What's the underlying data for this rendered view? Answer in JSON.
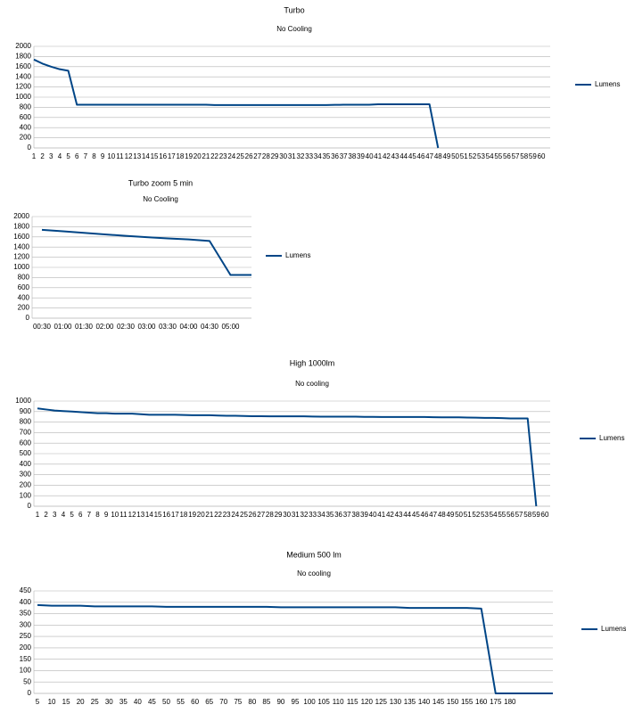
{
  "chart_data": [
    {
      "type": "line",
      "title": "Turbo",
      "subtitle": "No Cooling",
      "categories": [
        "1",
        "2",
        "3",
        "4",
        "5",
        "6",
        "7",
        "8",
        "9",
        "10",
        "11",
        "12",
        "13",
        "14",
        "15",
        "16",
        "17",
        "18",
        "19",
        "20",
        "21",
        "22",
        "23",
        "24",
        "25",
        "26",
        "27",
        "28",
        "29",
        "30",
        "31",
        "32",
        "33",
        "34",
        "35",
        "36",
        "37",
        "38",
        "39",
        "40",
        "41",
        "42",
        "43",
        "44",
        "45",
        "46",
        "47",
        "48",
        "49",
        "50",
        "51",
        "52",
        "53",
        "54",
        "55",
        "56",
        "57",
        "58",
        "59",
        "60"
      ],
      "series": [
        {
          "name": "Lumens",
          "color": "#004586",
          "values": [
            1740,
            1660,
            1600,
            1550,
            1520,
            850,
            850,
            850,
            850,
            850,
            850,
            850,
            850,
            850,
            850,
            850,
            850,
            850,
            850,
            850,
            850,
            845,
            845,
            845,
            845,
            845,
            845,
            845,
            845,
            845,
            845,
            845,
            845,
            845,
            845,
            848,
            850,
            850,
            850,
            850,
            860,
            860,
            860,
            860,
            860,
            860,
            860,
            0,
            null,
            null,
            null,
            null,
            null,
            null,
            null,
            null,
            null,
            null,
            null,
            null
          ]
        }
      ],
      "ylim": [
        0,
        2000
      ],
      "yticks": [
        0,
        200,
        400,
        600,
        800,
        1000,
        1200,
        1400,
        1600,
        1800,
        2000
      ],
      "grid": true
    },
    {
      "type": "line",
      "title": "Turbo zoom 5 min",
      "subtitle": "No Cooling",
      "categories": [
        "00:30",
        "01:00",
        "01:30",
        "02:00",
        "02:30",
        "03:00",
        "03:30",
        "04:00",
        "04:30",
        "05:00",
        null
      ],
      "series": [
        {
          "name": "Lumens",
          "color": "#004586",
          "values": [
            1740,
            1710,
            1680,
            1650,
            1620,
            1595,
            1570,
            1550,
            1520,
            850,
            850
          ]
        }
      ],
      "ylim": [
        0,
        2000
      ],
      "yticks": [
        0,
        200,
        400,
        600,
        800,
        1000,
        1200,
        1400,
        1600,
        1800,
        2000
      ],
      "grid": true
    },
    {
      "type": "line",
      "title": "High 1000lm",
      "subtitle": "No cooling",
      "categories": [
        "1",
        "2",
        "3",
        "4",
        "5",
        "6",
        "7",
        "8",
        "9",
        "10",
        "11",
        "12",
        "13",
        "14",
        "15",
        "16",
        "17",
        "18",
        "19",
        "20",
        "21",
        "22",
        "23",
        "24",
        "25",
        "26",
        "27",
        "28",
        "29",
        "30",
        "31",
        "32",
        "33",
        "34",
        "35",
        "36",
        "37",
        "38",
        "39",
        "40",
        "41",
        "42",
        "43",
        "44",
        "45",
        "46",
        "47",
        "48",
        "49",
        "50",
        "51",
        "52",
        "53",
        "54",
        "55",
        "56",
        "57",
        "58",
        "59",
        "60"
      ],
      "series": [
        {
          "name": "Lumens",
          "color": "#004586",
          "values": [
            930,
            920,
            910,
            905,
            900,
            895,
            890,
            885,
            885,
            880,
            880,
            880,
            875,
            870,
            870,
            870,
            870,
            868,
            865,
            865,
            865,
            862,
            860,
            860,
            858,
            856,
            856,
            855,
            855,
            855,
            855,
            855,
            853,
            852,
            852,
            852,
            852,
            852,
            850,
            850,
            848,
            848,
            848,
            848,
            848,
            848,
            846,
            845,
            845,
            845,
            843,
            842,
            840,
            840,
            838,
            835,
            835,
            835,
            0,
            null
          ]
        }
      ],
      "ylim": [
        0,
        1000
      ],
      "yticks": [
        0,
        100,
        200,
        300,
        400,
        500,
        600,
        700,
        800,
        900,
        1000
      ],
      "grid": true
    },
    {
      "type": "line",
      "title": "Medium 500 lm",
      "subtitle": "No cooling",
      "categories": [
        "5",
        "10",
        "15",
        "20",
        "25",
        "30",
        "35",
        "40",
        "45",
        "50",
        "55",
        "60",
        "65",
        "70",
        "75",
        "80",
        "85",
        "90",
        "95",
        "100",
        "105",
        "110",
        "115",
        "120",
        "125",
        "130",
        "135",
        "140",
        "145",
        "150",
        "155",
        "160",
        "175",
        "180",
        null,
        null,
        null
      ],
      "series": [
        {
          "name": "Lumens",
          "color": "#004586",
          "values": [
            388,
            385,
            385,
            385,
            382,
            382,
            382,
            382,
            382,
            380,
            380,
            380,
            380,
            380,
            380,
            380,
            380,
            378,
            378,
            378,
            378,
            378,
            378,
            378,
            378,
            378,
            375,
            375,
            375,
            375,
            375,
            372,
            0,
            0,
            0,
            0,
            0
          ]
        }
      ],
      "ylim": [
        0,
        450
      ],
      "yticks": [
        0,
        50,
        100,
        150,
        200,
        250,
        300,
        350,
        400,
        450
      ],
      "grid": true
    }
  ]
}
